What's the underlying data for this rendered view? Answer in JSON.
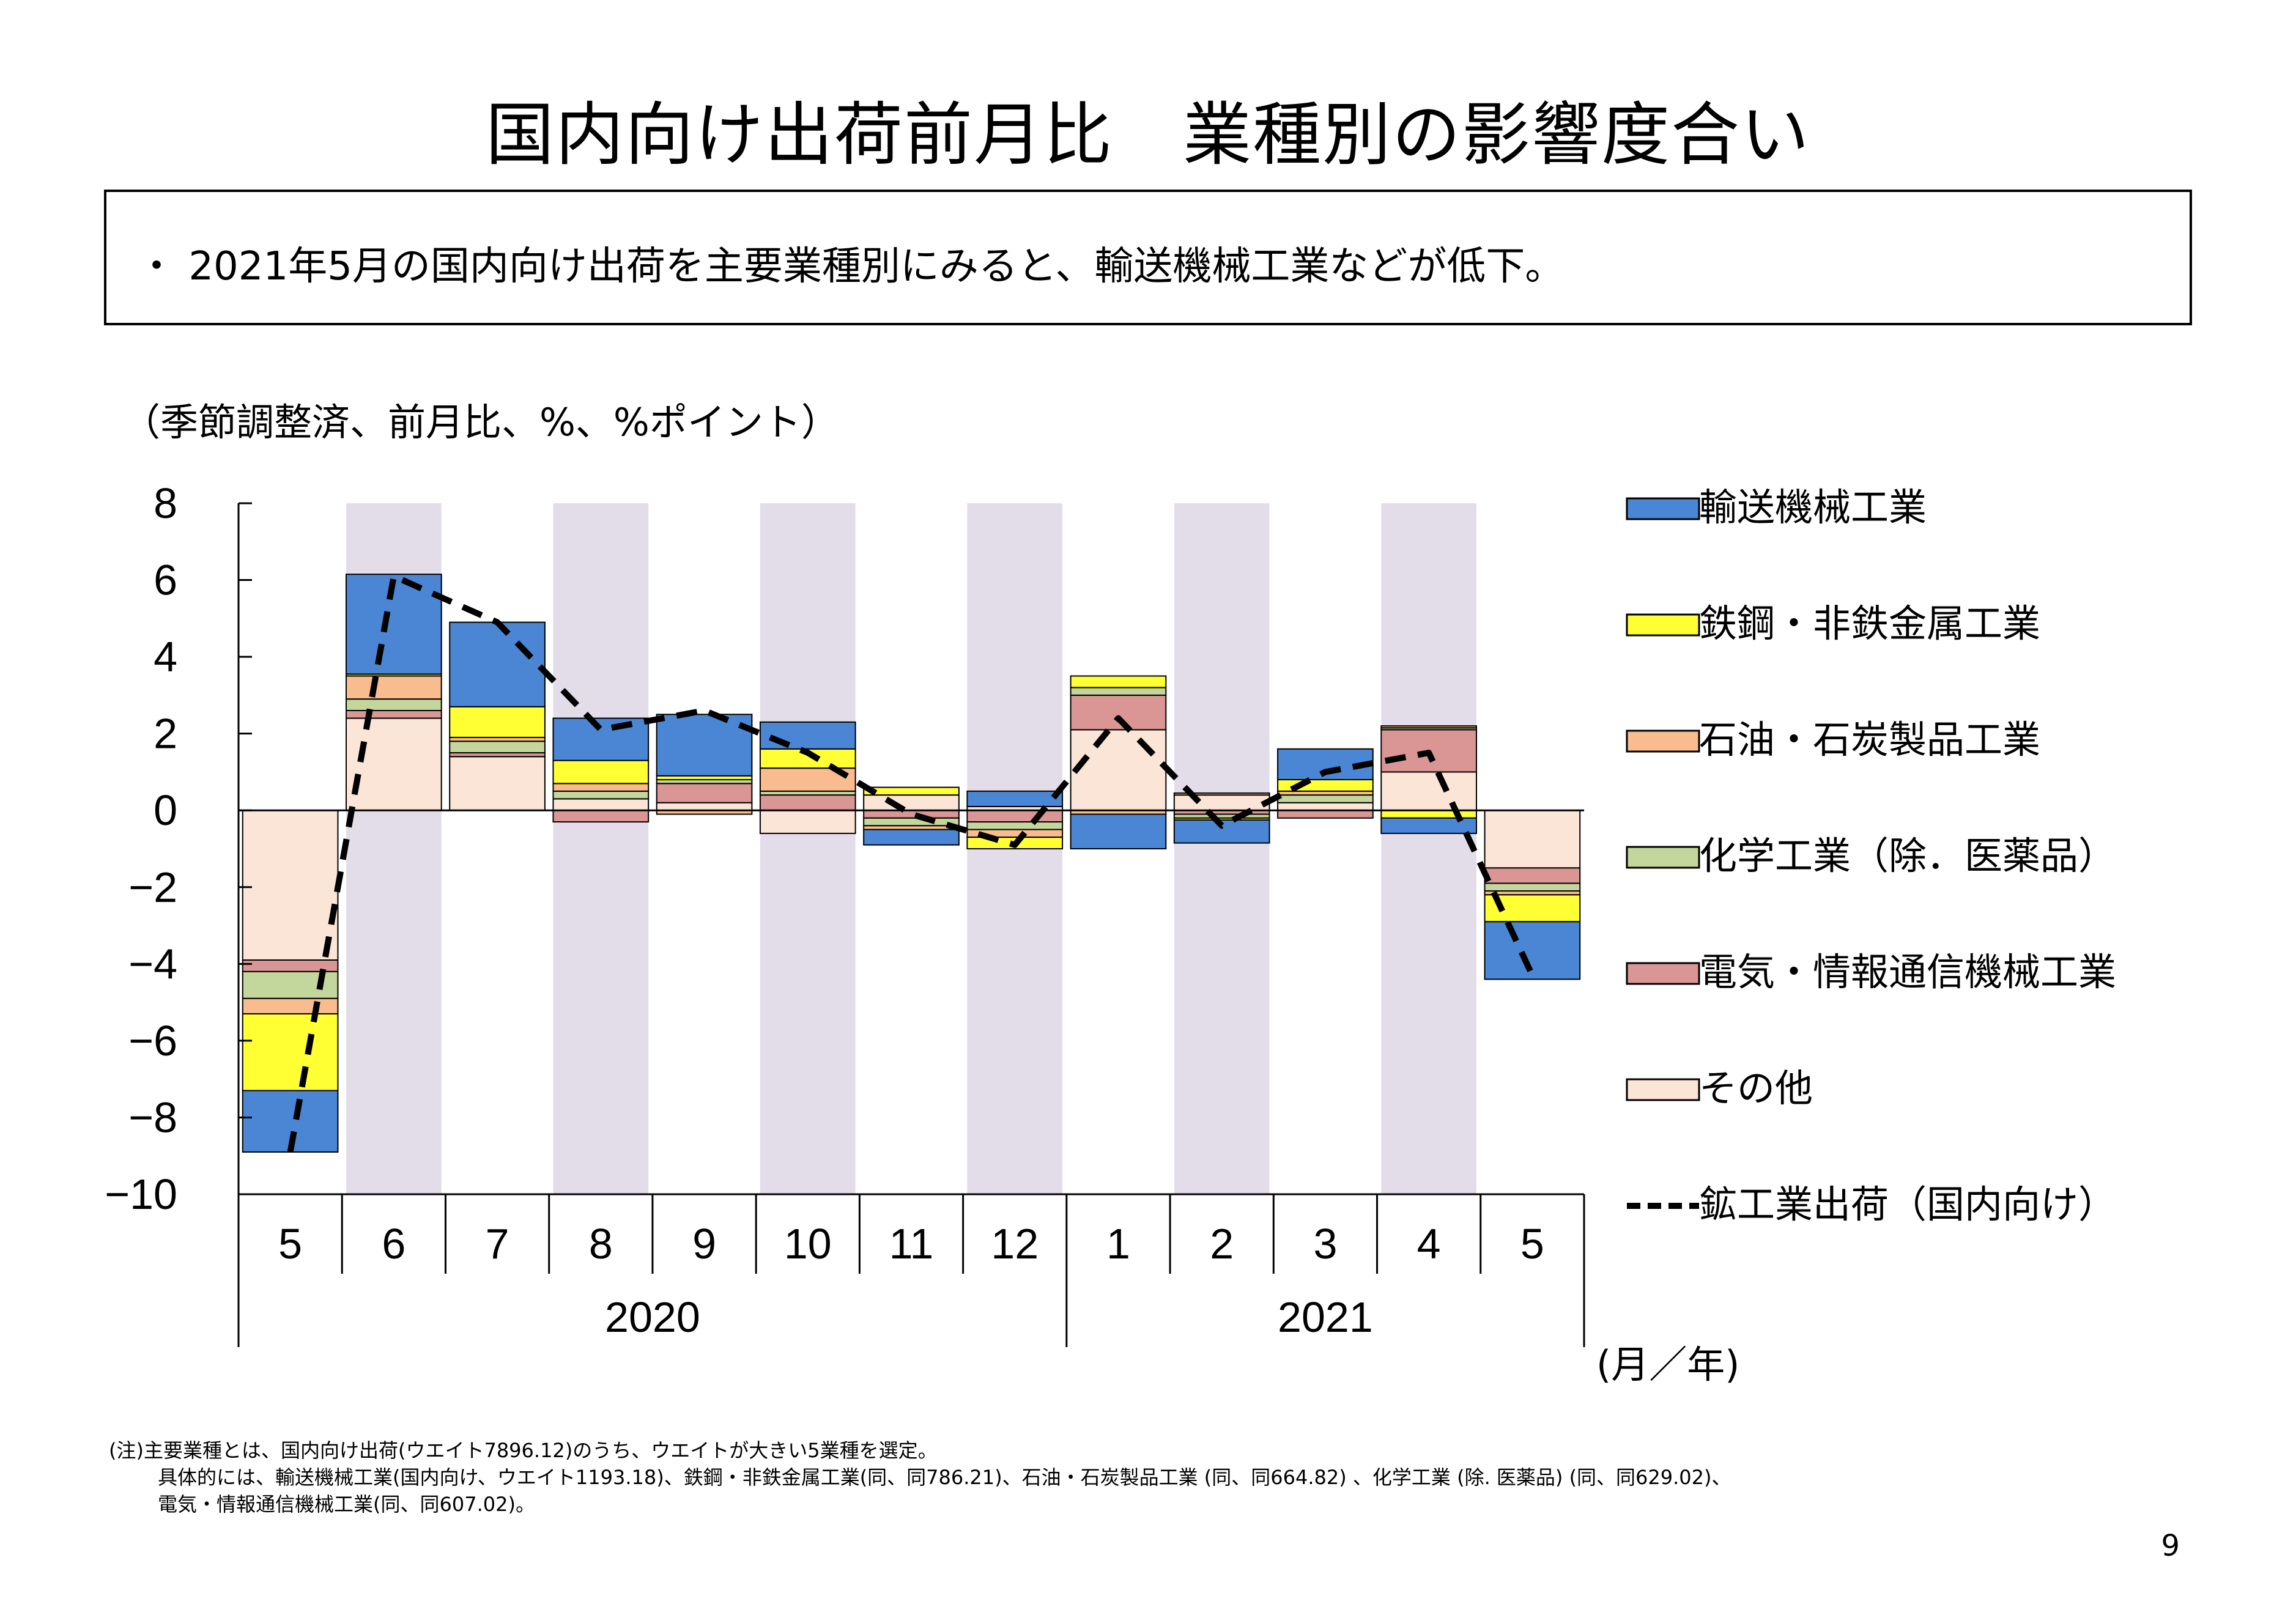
{
  "title": "国内向け出荷前月比　業種別の影響度合い",
  "summary": "・ 2021年5月の国内向け出荷を主要業種別にみると、輸送機械工業などが低下。",
  "units_note": "（季節調整済、前月比、%、%ポイント）",
  "footnote": {
    "line1": "(注)主要業種とは、国内向け出荷(ウエイト7896.12)のうち、ウエイトが大きい5業種を選定。",
    "line2": "具体的には、輸送機械工業(国内向け、ウエイト1193.18)、鉄鋼・非鉄金属工業(同、同786.21)、石油・石炭製品工業 (同、同664.82) 、化学工業 (除. 医薬品) (同、同629.02)、",
    "line3": "電気・情報通信機械工業(同、同607.02)。"
  },
  "page_number": "9",
  "colors": {
    "transport": "#4a86d4",
    "steel": "#ffff33",
    "petroleum": "#f9bc8e",
    "chemical": "#c3d69b",
    "electrical": "#d99694",
    "other": "#fbe5d6",
    "shade": "#e2dde9",
    "line": "#000000"
  },
  "chart_data": {
    "type": "bar",
    "stacked": true,
    "categories": [
      "5",
      "6",
      "7",
      "8",
      "9",
      "10",
      "11",
      "12",
      "1",
      "2",
      "3",
      "4",
      "5"
    ],
    "year_labels": [
      {
        "label": "2020",
        "span": [
          "5",
          "12"
        ]
      },
      {
        "label": "2021",
        "span": [
          "1",
          "5"
        ]
      }
    ],
    "xlabel": "(月／年)",
    "ylim": [
      -10,
      8
    ],
    "yticks": [
      8,
      6,
      4,
      2,
      0,
      -2,
      -4,
      -6,
      -8,
      -10
    ],
    "ytick_labels": [
      "8",
      "6",
      "4",
      "2",
      "0",
      "−2",
      "−4",
      "−6",
      "−8",
      "−10"
    ],
    "shaded_categories": [
      1,
      3,
      5,
      7,
      9,
      11
    ],
    "series": [
      {
        "name": "その他",
        "key": "other",
        "values": [
          -3.9,
          2.4,
          1.4,
          0.3,
          0.2,
          -0.6,
          0.4,
          0.1,
          2.1,
          0.4,
          0.2,
          1.0,
          -1.5
        ]
      },
      {
        "name": "電気・情報通信機械工業",
        "key": "electrical",
        "values": [
          -0.3,
          0.2,
          0.1,
          -0.3,
          0.5,
          0.4,
          -0.2,
          -0.3,
          0.9,
          -0.1,
          -0.2,
          1.1,
          -0.4
        ]
      },
      {
        "name": "化学工業（除．医薬品）",
        "key": "chemical",
        "values": [
          -0.7,
          0.3,
          0.3,
          0.2,
          0.1,
          0.1,
          -0.2,
          -0.2,
          0.2,
          -0.1,
          0.2,
          0.05,
          -0.2
        ]
      },
      {
        "name": "石油・石炭製品工業",
        "key": "petroleum",
        "values": [
          -0.4,
          0.6,
          0.1,
          0.2,
          -0.1,
          0.6,
          -0.1,
          -0.2,
          -0.1,
          0.05,
          0.1,
          0.05,
          -0.1
        ]
      },
      {
        "name": "鉄鋼・非鉄金属工業",
        "key": "steel",
        "values": [
          -2.0,
          0.05,
          0.8,
          0.6,
          0.1,
          0.5,
          0.2,
          -0.3,
          0.3,
          -0.05,
          0.3,
          -0.2,
          -0.7
        ]
      },
      {
        "name": "輸送機械工業",
        "key": "transport",
        "values": [
          -1.6,
          2.6,
          2.2,
          1.1,
          1.6,
          0.7,
          -0.4,
          0.4,
          -0.9,
          -0.6,
          0.8,
          -0.4,
          -1.5
        ]
      }
    ],
    "line_series": {
      "name": "鉱工業出荷（国内向け）",
      "values": [
        -8.9,
        6.1,
        4.9,
        2.1,
        2.6,
        1.5,
        -0.1,
        -0.9,
        2.4,
        -0.4,
        1.0,
        1.5,
        -4.3
      ]
    }
  }
}
